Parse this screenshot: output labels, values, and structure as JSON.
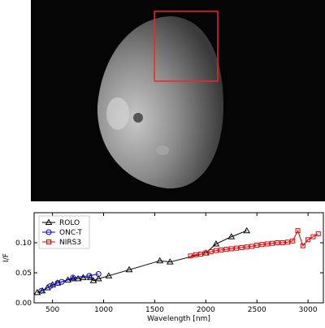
{
  "chart_data": {
    "type": "line",
    "x_label": "Wavelength [nm]",
    "y_label": "I/F",
    "xlim": [
      320,
      3150
    ],
    "ylim": [
      0,
      0.15
    ],
    "xticks": [
      500,
      1000,
      1500,
      2000,
      2500,
      3000
    ],
    "yticks": [
      {
        "value": 0,
        "label": "0.00"
      },
      {
        "value": 0.05,
        "label": "0.05"
      },
      {
        "value": 0.1,
        "label": "0.10"
      }
    ],
    "legend": "upper left",
    "series": [
      {
        "name": "ROLO",
        "color": "#000000",
        "marker": "triangle",
        "x": [
          350,
          400,
          450,
          500,
          550,
          650,
          700,
          750,
          800,
          870,
          900,
          950,
          1050,
          1250,
          1550,
          1650,
          2000,
          2100,
          2250,
          2400
        ],
        "values": [
          0.017,
          0.02,
          0.025,
          0.03,
          0.033,
          0.038,
          0.04,
          0.04,
          0.042,
          0.042,
          0.037,
          0.04,
          0.045,
          0.055,
          0.07,
          0.068,
          0.083,
          0.098,
          0.11,
          0.12
        ]
      },
      {
        "name": "ONC-T",
        "color": "#0000cc",
        "marker": "circle",
        "x": [
          390,
          480,
          550,
          590,
          700,
          860,
          950
        ],
        "values": [
          0.02,
          0.028,
          0.033,
          0.035,
          0.042,
          0.045,
          0.048
        ]
      },
      {
        "name": "NIRS3",
        "color": "#dd0000",
        "marker": "square",
        "x": [
          1850,
          1900,
          1950,
          2000,
          2050,
          2100,
          2150,
          2200,
          2250,
          2300,
          2350,
          2400,
          2450,
          2500,
          2550,
          2600,
          2650,
          2700,
          2750,
          2800,
          2850,
          2900,
          2950,
          3000,
          3050,
          3100
        ],
        "values": [
          0.078,
          0.08,
          0.081,
          0.083,
          0.085,
          0.087,
          0.088,
          0.089,
          0.09,
          0.091,
          0.092,
          0.093,
          0.094,
          0.096,
          0.097,
          0.098,
          0.099,
          0.1,
          0.1,
          0.101,
          0.103,
          0.12,
          0.095,
          0.105,
          0.11,
          0.115
        ]
      }
    ]
  }
}
